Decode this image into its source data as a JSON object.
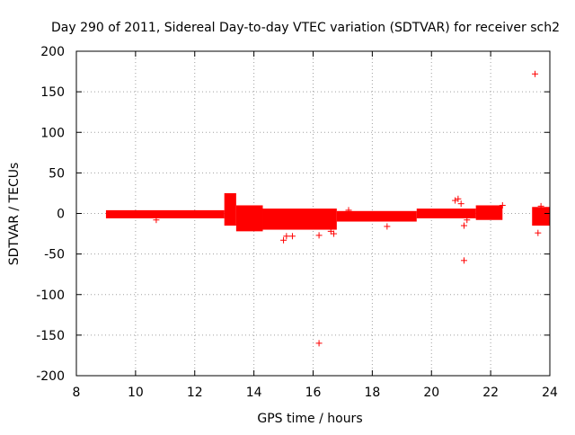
{
  "chart_data": {
    "type": "scatter",
    "title": "Day 290 of 2011, Sidereal Day-to-day VTEC variation (SDTVAR) for receiver sch2",
    "xlabel": "GPS time / hours",
    "ylabel": "SDTVAR / TECUs",
    "xlim": [
      8,
      24
    ],
    "ylim": [
      -200,
      200
    ],
    "xticks": [
      8,
      10,
      12,
      14,
      16,
      18,
      20,
      22,
      24
    ],
    "xtick_labels": [
      "8",
      "10",
      "12",
      "14",
      "16",
      "18",
      "20",
      "22",
      "24"
    ],
    "yticks": [
      -200,
      -150,
      -100,
      -50,
      0,
      50,
      100,
      150,
      200
    ],
    "ytick_labels": [
      "-200",
      "-150",
      "-100",
      "-50",
      "0",
      "50",
      "100",
      "150",
      "200"
    ],
    "grid": true,
    "marker": "+",
    "series": [
      {
        "name": "SDTVAR",
        "color": "#ff0000",
        "bands": [
          {
            "x_start": 9.0,
            "x_end": 13.0,
            "lower": -6,
            "upper": 4
          },
          {
            "x_start": 13.0,
            "x_end": 13.4,
            "lower": -15,
            "upper": 25
          },
          {
            "x_start": 13.4,
            "x_end": 14.3,
            "lower": -22,
            "upper": 10
          },
          {
            "x_start": 14.3,
            "x_end": 16.8,
            "lower": -20,
            "upper": 6
          },
          {
            "x_start": 16.8,
            "x_end": 19.5,
            "lower": -10,
            "upper": 3
          },
          {
            "x_start": 19.5,
            "x_end": 21.5,
            "lower": -6,
            "upper": 6
          },
          {
            "x_start": 21.5,
            "x_end": 22.4,
            "lower": -8,
            "upper": 10
          },
          {
            "x_start": 23.4,
            "x_end": 24.0,
            "lower": -15,
            "upper": 8
          }
        ],
        "outliers": [
          {
            "x": 23.5,
            "y": 172
          },
          {
            "x": 16.2,
            "y": -160
          },
          {
            "x": 21.1,
            "y": -58
          },
          {
            "x": 23.6,
            "y": -24
          },
          {
            "x": 15.0,
            "y": -33
          },
          {
            "x": 15.1,
            "y": -28
          },
          {
            "x": 15.3,
            "y": -28
          },
          {
            "x": 16.2,
            "y": -27
          },
          {
            "x": 16.6,
            "y": -22
          },
          {
            "x": 16.7,
            "y": -25
          },
          {
            "x": 18.5,
            "y": -16
          },
          {
            "x": 20.8,
            "y": 16
          },
          {
            "x": 20.9,
            "y": 18
          },
          {
            "x": 21.0,
            "y": 12
          },
          {
            "x": 21.1,
            "y": -15
          },
          {
            "x": 21.2,
            "y": -8
          },
          {
            "x": 17.2,
            "y": 4
          },
          {
            "x": 10.7,
            "y": -8
          },
          {
            "x": 23.7,
            "y": 9
          },
          {
            "x": 23.9,
            "y": 4
          },
          {
            "x": 22.4,
            "y": 10
          }
        ]
      }
    ]
  }
}
